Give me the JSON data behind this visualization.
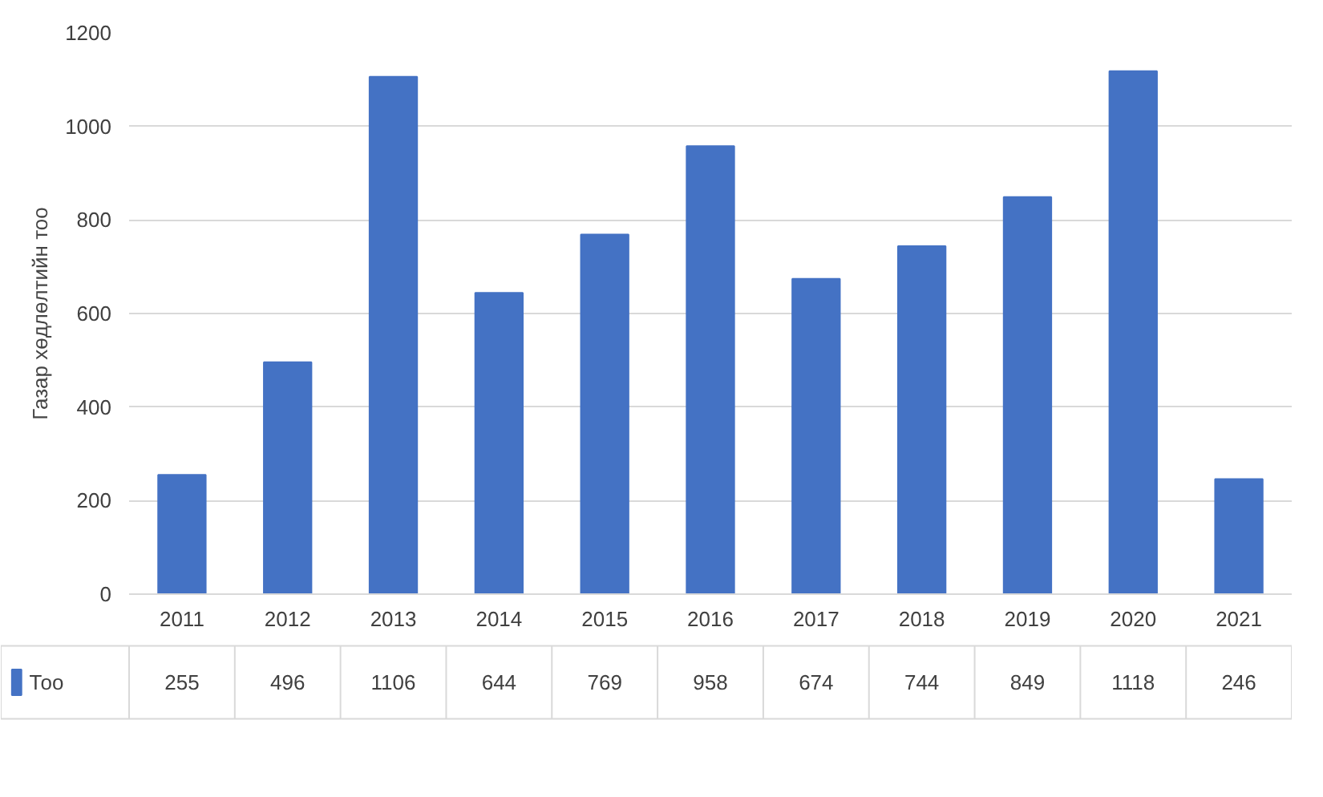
{
  "chart_data": {
    "type": "bar",
    "ylabel": "Газар хөдлөлтийн тоо",
    "categories": [
      "2011",
      "2012",
      "2013",
      "2014",
      "2015",
      "2016",
      "2017",
      "2018",
      "2019",
      "2020",
      "2021"
    ],
    "series": [
      {
        "name": "Тоо",
        "color": "#4472c4",
        "values": [
          255,
          496,
          1106,
          644,
          769,
          958,
          674,
          744,
          849,
          1118,
          246
        ]
      }
    ],
    "ylim": [
      0,
      1200
    ],
    "yticks": [
      0,
      200,
      400,
      600,
      800,
      1000,
      1200
    ],
    "grid": "y",
    "legend": "bottom",
    "data_labels": true
  }
}
